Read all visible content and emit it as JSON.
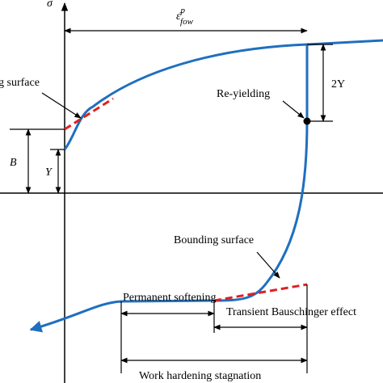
{
  "axes": {
    "y_label": "σ"
  },
  "dimensions": {
    "plastic_strain": {
      "symbol": "ε̄",
      "sup": "p",
      "sub": "fow"
    },
    "two_y": "2Y",
    "b": "B",
    "y": "Y"
  },
  "annotations": {
    "re_yielding": "Re-yielding",
    "upper_surface": "g surface",
    "lower_surface": "Bounding surface",
    "permanent_softening": "Permanent softening",
    "transient": "Transient Bauschinger effect",
    "stagnation": "Work hardening stagnation"
  }
}
